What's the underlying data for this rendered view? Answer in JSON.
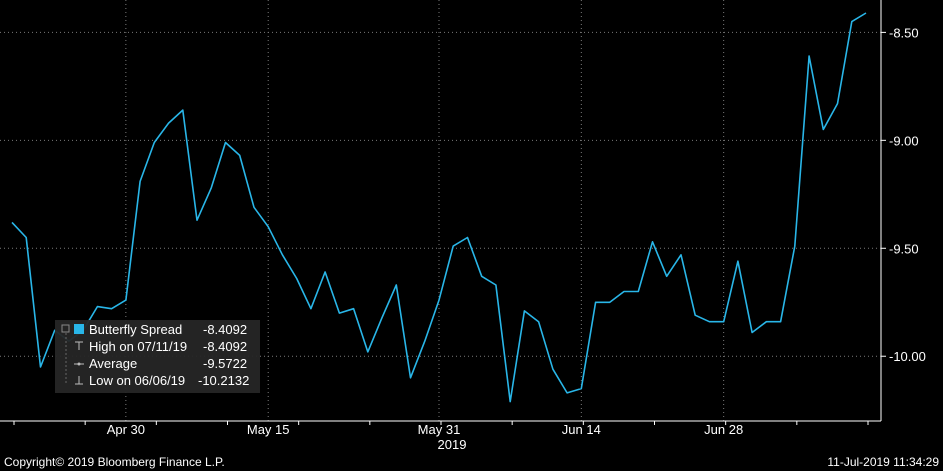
{
  "chart_data": {
    "type": "line",
    "ylim": [
      -10.3,
      -8.35
    ],
    "yticks": [
      -8.5,
      -9.0,
      -9.5,
      -10.0
    ],
    "ytick_labels": [
      "-8.50",
      "-9.00",
      "-9.50",
      "-10.00"
    ],
    "grid": true,
    "line_color": "#29b6e8",
    "xtick_labels": [
      "Apr 30",
      "May 15",
      "May 31",
      "Jun 14",
      "Jun 28"
    ],
    "xyear_label": "2019",
    "series": [
      {
        "name": "Butterfly Spread",
        "values": [
          -9.38,
          -9.45,
          -10.05,
          -9.88,
          -9.93,
          -9.88,
          -9.77,
          -9.78,
          -9.74,
          -9.19,
          -9.01,
          -8.92,
          -8.86,
          -9.37,
          -9.22,
          -9.01,
          -9.07,
          -9.31,
          -9.4,
          -9.53,
          -9.64,
          -9.78,
          -9.61,
          -9.8,
          -9.78,
          -9.98,
          -9.82,
          -9.67,
          -10.1,
          -9.93,
          -9.74,
          -9.49,
          -9.45,
          -9.63,
          -9.67,
          -10.21,
          -9.79,
          -9.84,
          -10.06,
          -10.17,
          -10.15,
          -9.75,
          -9.75,
          -9.7,
          -9.7,
          -9.47,
          -9.63,
          -9.53,
          -9.81,
          -9.84,
          -9.84,
          -9.56,
          -9.89,
          -9.84,
          -9.84,
          -9.49,
          -8.61,
          -8.95,
          -8.83,
          -8.45,
          -8.41
        ]
      }
    ],
    "legend": {
      "placement": "bottom-left",
      "entries": [
        {
          "label": "Butterfly Spread",
          "value": "-8.4092",
          "marker": "square"
        },
        {
          "label": "High on 07/11/19",
          "value": "-8.4092",
          "marker": "high"
        },
        {
          "label": "Average",
          "value": "-9.5722",
          "marker": "avg"
        },
        {
          "label": "Low on 06/06/19",
          "value": "-10.2132",
          "marker": "low"
        }
      ]
    }
  },
  "footer": {
    "copyright": "Copyright© 2019 Bloomberg Finance L.P.",
    "timestamp": "11-Jul-2019 11:34:29"
  }
}
